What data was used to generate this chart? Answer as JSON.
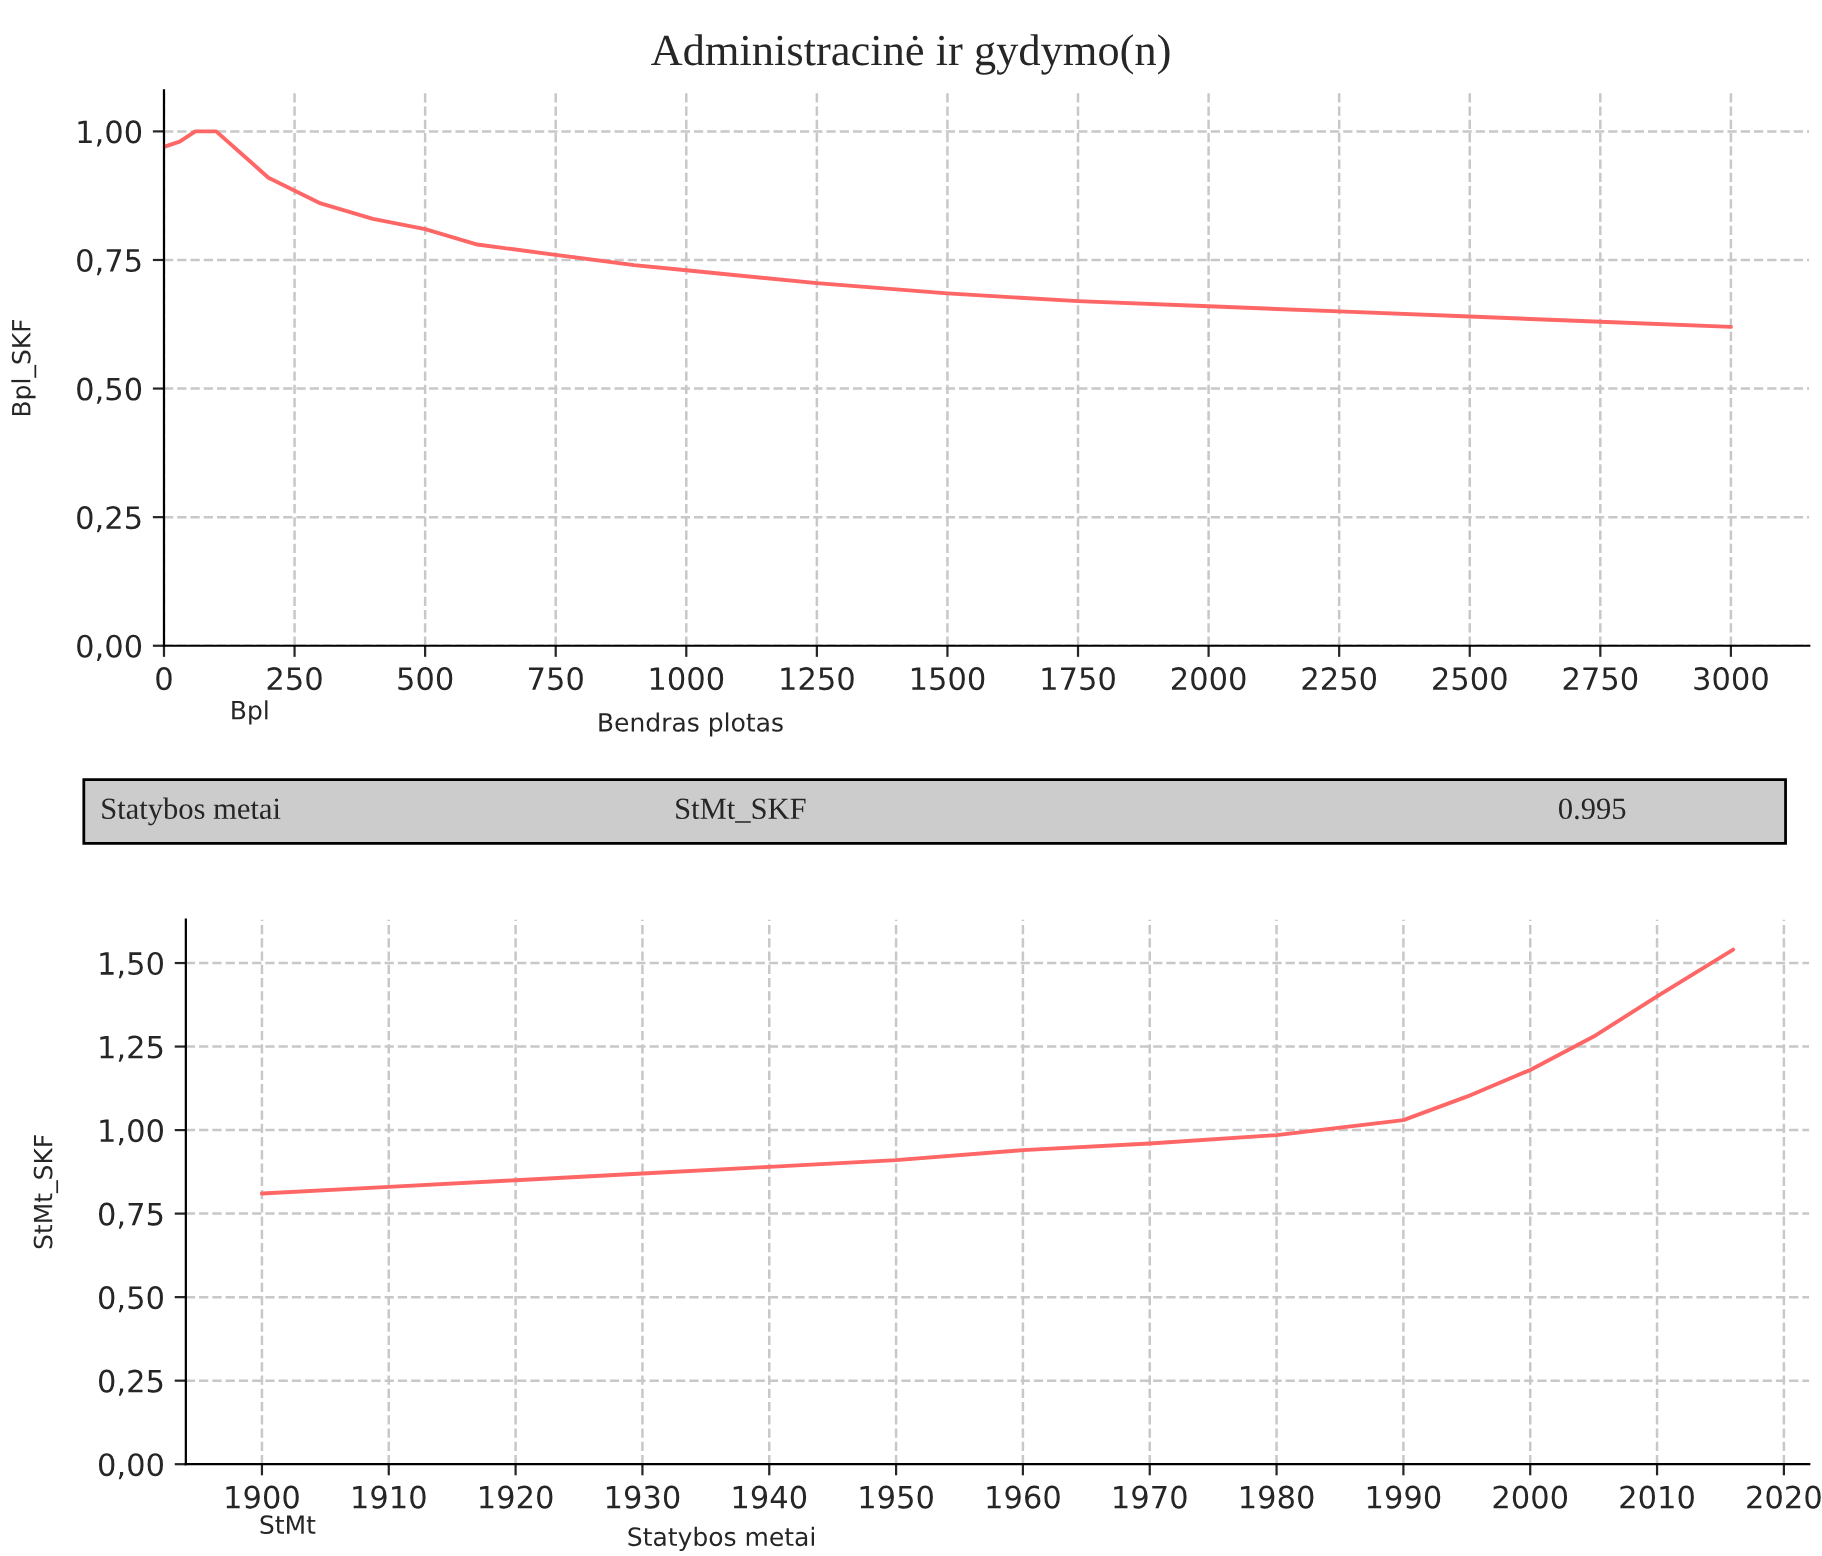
{
  "chart_data": [
    {
      "type": "line",
      "title": "Administracinė ir gydymo(n)",
      "xlabel": "Bendras plotas",
      "ylabel": "Bpl_SKF",
      "annotations": [
        "Bpl"
      ],
      "x": [
        0,
        30,
        60,
        100,
        200,
        300,
        400,
        500,
        600,
        750,
        900,
        1000,
        1250,
        1500,
        1750,
        2000,
        2250,
        2500,
        2750,
        3000
      ],
      "series": [
        {
          "color": "#ff6666",
          "values": [
            0.97,
            0.98,
            1.0,
            1.0,
            0.91,
            0.86,
            0.83,
            0.81,
            0.78,
            0.76,
            0.74,
            0.73,
            0.705,
            0.685,
            0.67,
            0.66,
            0.65,
            0.64,
            0.63,
            0.62
          ]
        }
      ],
      "xlim": [
        0,
        3150
      ],
      "ylim": [
        0,
        1.08
      ],
      "xticks": [
        0,
        250,
        500,
        750,
        1000,
        1250,
        1500,
        1750,
        2000,
        2250,
        2500,
        2750,
        3000
      ],
      "yticks": [
        {
          "value": 0,
          "label": "0,00"
        },
        {
          "value": 0.25,
          "label": "0,25"
        },
        {
          "value": 0.5,
          "label": "0,50"
        },
        {
          "value": 0.75,
          "label": "0,75"
        },
        {
          "value": 1.0,
          "label": "1,00"
        }
      ],
      "grid": true,
      "legend": false,
      "marker": "none",
      "line_style": "solid"
    },
    {
      "type": "line",
      "xlabel": "Statybos metai",
      "ylabel": "StMt_SKF",
      "annotations": [
        "StMt",
        "Statybos metai",
        "StMt_SKF",
        "0.995"
      ],
      "x": [
        1900,
        1910,
        1920,
        1930,
        1940,
        1950,
        1960,
        1970,
        1980,
        1990,
        1995,
        2000,
        2005,
        2010,
        2016
      ],
      "series": [
        {
          "color": "#ff6666",
          "values": [
            0.81,
            0.83,
            0.85,
            0.87,
            0.89,
            0.91,
            0.94,
            0.96,
            0.985,
            1.03,
            1.1,
            1.18,
            1.28,
            1.4,
            1.54
          ]
        }
      ],
      "xlim": [
        1894,
        2022
      ],
      "ylim": [
        0,
        1.63
      ],
      "xticks": [
        1900,
        1910,
        1920,
        1930,
        1940,
        1950,
        1960,
        1970,
        1980,
        1990,
        2000,
        2010,
        2020
      ],
      "yticks": [
        {
          "value": 0,
          "label": "0,00"
        },
        {
          "value": 0.25,
          "label": "0,25"
        },
        {
          "value": 0.5,
          "label": "0,50"
        },
        {
          "value": 0.75,
          "label": "0,75"
        },
        {
          "value": 1.0,
          "label": "1,00"
        },
        {
          "value": 1.25,
          "label": "1,25"
        },
        {
          "value": 1.5,
          "label": "1,50"
        }
      ],
      "grid": true,
      "legend": false,
      "marker": "none",
      "line_style": "solid"
    }
  ]
}
